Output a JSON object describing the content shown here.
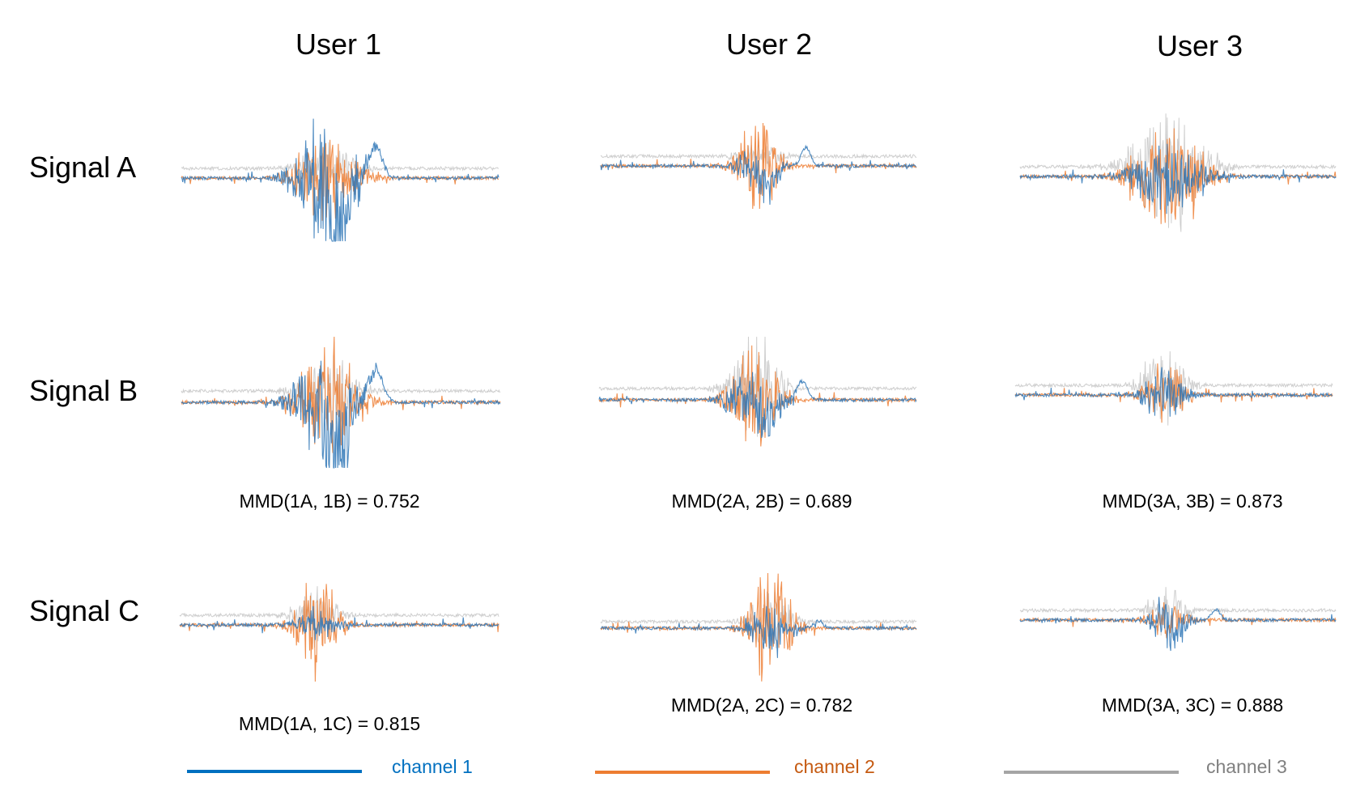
{
  "chart_data": {
    "type": "line",
    "columns": [
      "User 1",
      "User 2",
      "User 3"
    ],
    "rows": [
      "Signal A",
      "Signal B",
      "Signal C"
    ],
    "series": [
      {
        "name": "channel 1",
        "color": "#2E75B6"
      },
      {
        "name": "channel 2",
        "color": "#ED7D31"
      },
      {
        "name": "channel 3",
        "color": "#A5A5A5"
      }
    ],
    "mmd": [
      {
        "user": "User 1",
        "b": "MMD(1A, 1B) = 0.752",
        "c": "MMD(1A, 1C) = 0.815"
      },
      {
        "user": "User 2",
        "b": "MMD(2A, 2B) = 0.689",
        "c": "MMD(2A, 2C) = 0.782"
      },
      {
        "user": "User 3",
        "b": "MMD(3A, 3B) = 0.873",
        "c": "MMD(3A, 3C) = 0.888"
      }
    ],
    "grid": false,
    "legend_position": "bottom"
  }
}
